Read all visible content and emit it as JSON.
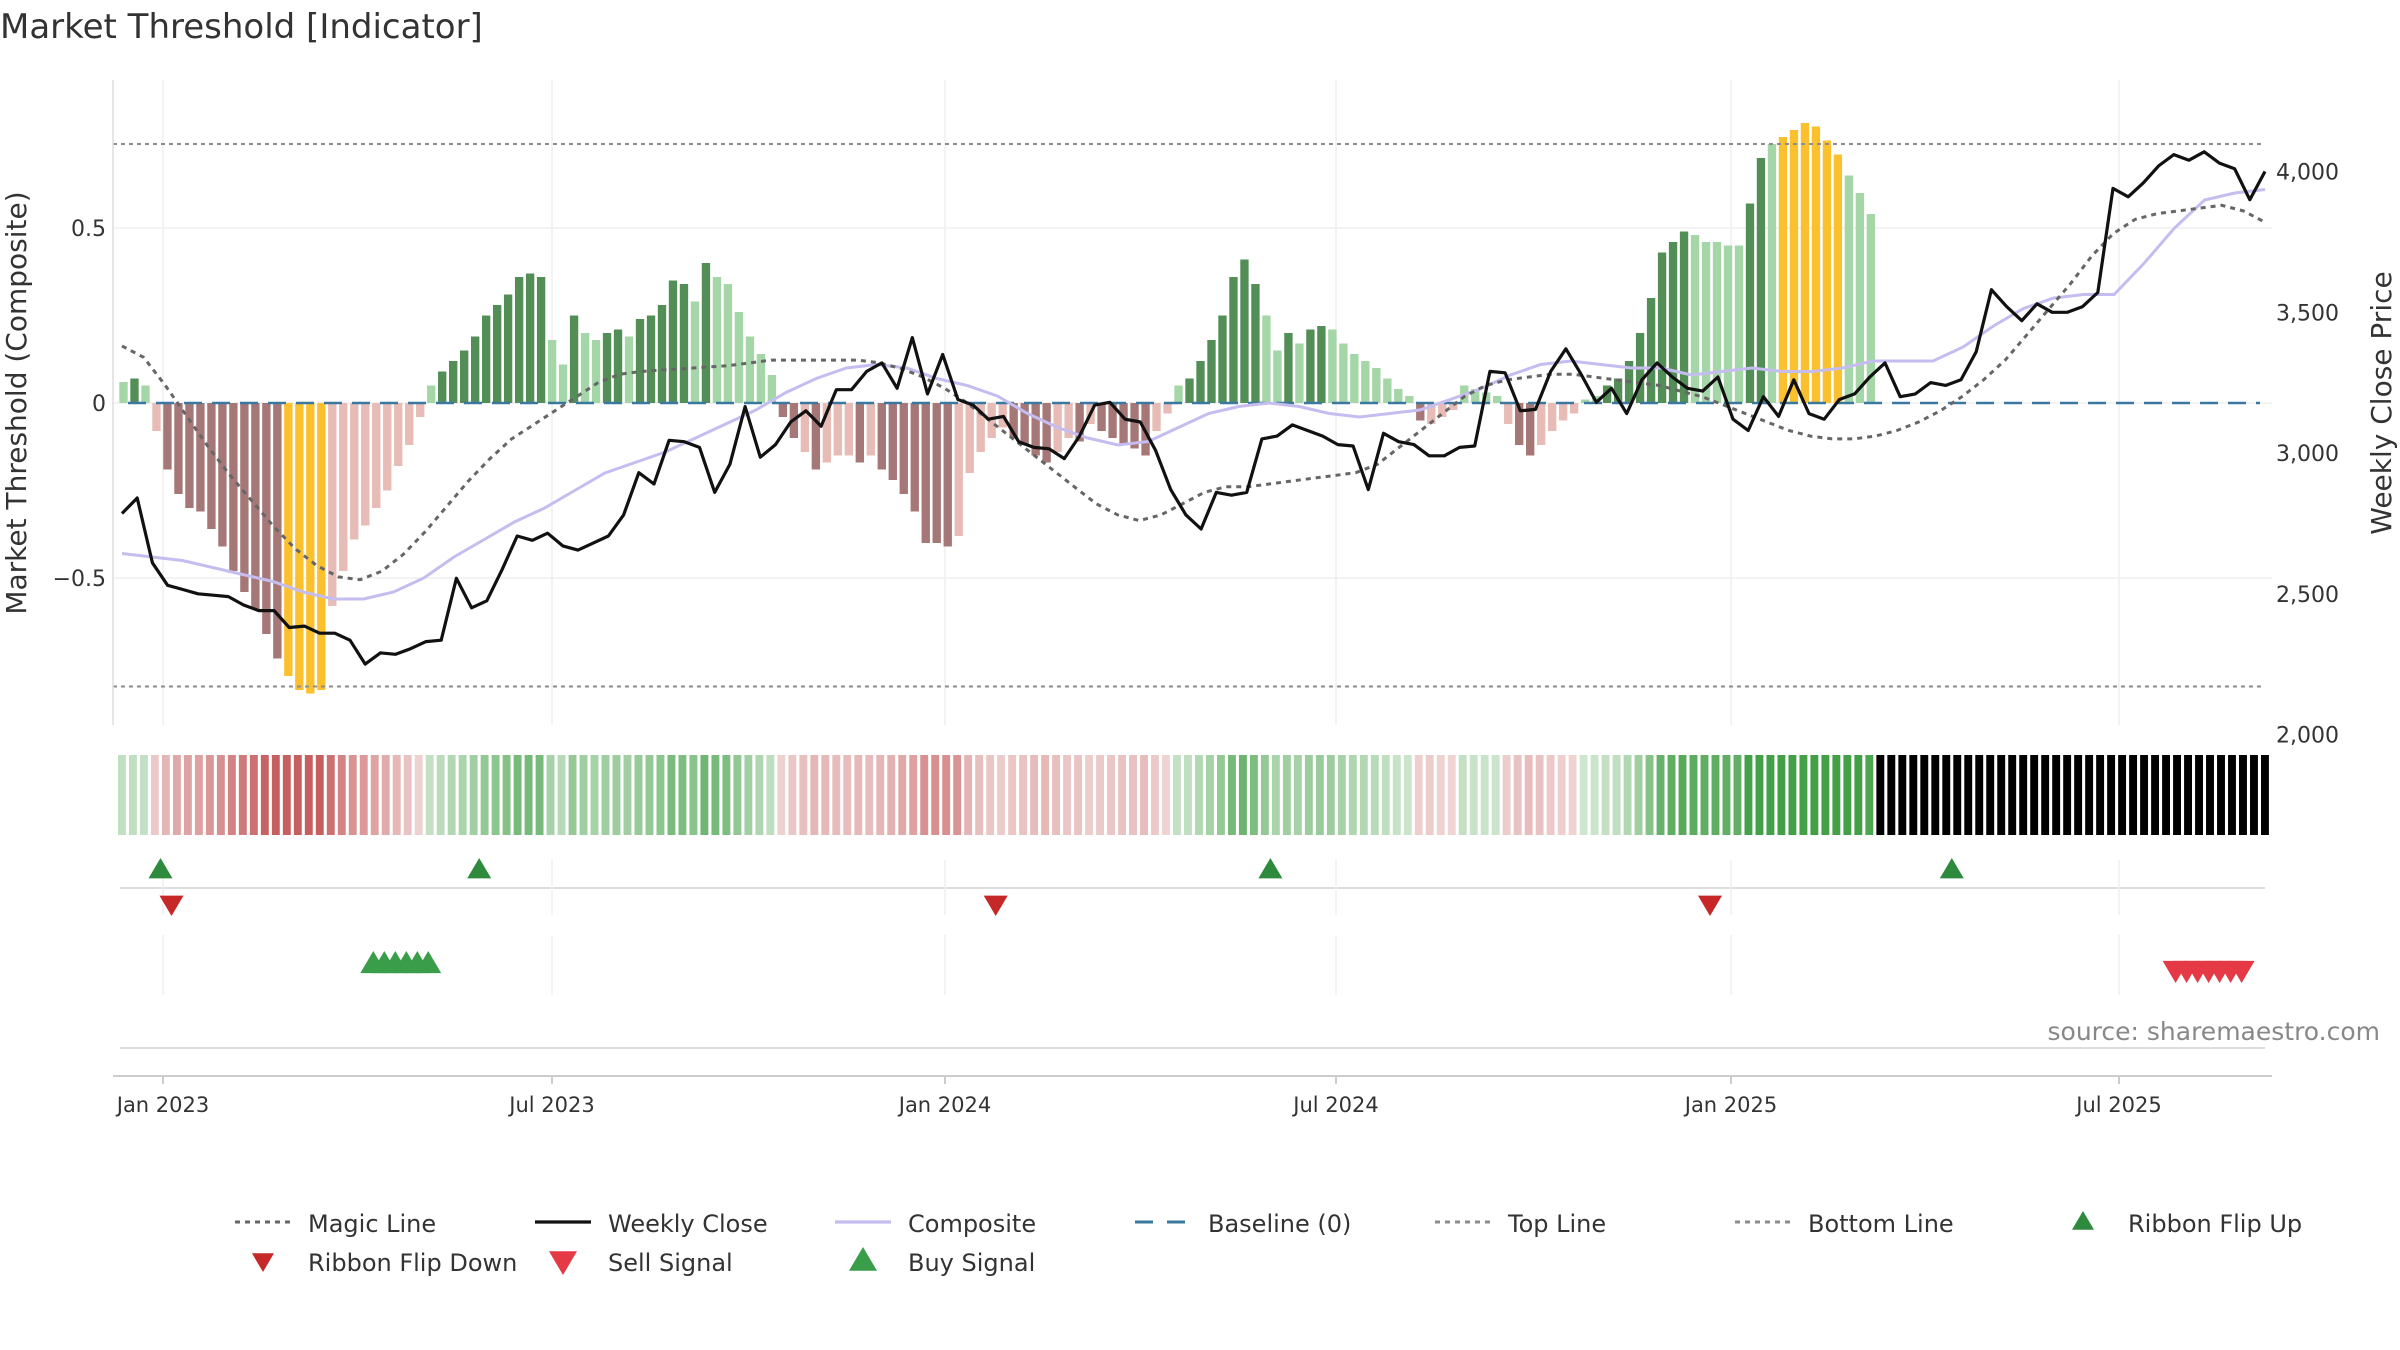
{
  "title": "Market Threshold [Indicator]",
  "source": "source: sharemaestro.com",
  "chart_data": {
    "type": "bar",
    "title": "Market Threshold [Indicator]",
    "ylabel_left": "Market Threshold (Composite)",
    "ylabel_right": "Weekly Close Price",
    "left_ylim": [
      -0.92,
      0.92
    ],
    "right_ylim": [
      1950,
      4150
    ],
    "left_ticks": [
      {
        "value": 0.5,
        "label": "0.5"
      },
      {
        "value": 0,
        "label": "0"
      },
      {
        "value": -0.5,
        "label": "−0.5"
      }
    ],
    "right_ticks": [
      {
        "value": 4000,
        "label": "4,000"
      },
      {
        "value": 3500,
        "label": "3,500"
      },
      {
        "value": 3000,
        "label": "3,000"
      },
      {
        "value": 2500,
        "label": "2,500"
      },
      {
        "value": 2000,
        "label": "2,000"
      }
    ],
    "x_ticks": [
      "Jan 2023",
      "Jul 2023",
      "Jan 2024",
      "Jul 2024",
      "Jan 2025",
      "Jul 2025"
    ],
    "top_line": 0.74,
    "bottom_line": -0.81,
    "baseline": 0,
    "weeks": 196,
    "composite_bars": [
      0.06,
      0.07,
      0.05,
      -0.08,
      -0.19,
      -0.26,
      -0.3,
      -0.31,
      -0.36,
      -0.41,
      -0.48,
      -0.54,
      -0.59,
      -0.66,
      -0.73,
      -0.78,
      -0.82,
      -0.83,
      -0.82,
      -0.58,
      -0.48,
      -0.39,
      -0.35,
      -0.3,
      -0.25,
      -0.18,
      -0.12,
      -0.04,
      0.05,
      0.09,
      0.12,
      0.15,
      0.19,
      0.25,
      0.28,
      0.31,
      0.36,
      0.37,
      0.36,
      0.18,
      0.11,
      0.25,
      0.2,
      0.18,
      0.2,
      0.21,
      0.19,
      0.24,
      0.25,
      0.28,
      0.35,
      0.34,
      0.29,
      0.4,
      0.36,
      0.34,
      0.26,
      0.19,
      0.14,
      0.08,
      -0.04,
      -0.1,
      -0.14,
      -0.19,
      -0.17,
      -0.15,
      -0.15,
      -0.17,
      -0.15,
      -0.19,
      -0.22,
      -0.26,
      -0.31,
      -0.4,
      -0.4,
      -0.41,
      -0.38,
      -0.2,
      -0.14,
      -0.1,
      -0.07,
      -0.1,
      -0.12,
      -0.15,
      -0.17,
      -0.14,
      -0.1,
      -0.11,
      -0.06,
      -0.08,
      -0.1,
      -0.12,
      -0.13,
      -0.15,
      -0.08,
      -0.03,
      0.05,
      0.07,
      0.12,
      0.18,
      0.25,
      0.36,
      0.41,
      0.34,
      0.25,
      0.15,
      0.2,
      0.17,
      0.21,
      0.22,
      0.21,
      0.17,
      0.14,
      0.12,
      0.1,
      0.07,
      0.04,
      0.02,
      -0.05,
      -0.06,
      -0.04,
      -0.02,
      0.05,
      0.04,
      0.03,
      0.02,
      -0.06,
      -0.12,
      -0.15,
      -0.12,
      -0.08,
      -0.05,
      -0.03,
      0.01,
      0.02,
      0.05,
      0.07,
      0.12,
      0.2,
      0.3,
      0.43,
      0.46,
      0.49,
      0.48,
      0.46,
      0.46,
      0.45,
      0.45,
      0.57,
      0.7,
      0.74,
      0.76,
      0.78,
      0.8,
      0.79,
      0.75,
      0.71,
      0.65,
      0.6,
      0.54
    ],
    "composite_bar_colors": [
      "#a5d6a7",
      "#548e57",
      "#a5d6a7",
      "#e8bcb6",
      "#a67777",
      "#a67777",
      "#a67777",
      "#a67777",
      "#a67777",
      "#a67777",
      "#a67777",
      "#a67777",
      "#a67777",
      "#a67777",
      "#a67777",
      "#fbc02d",
      "#fbc02d",
      "#fbc02d",
      "#fbc02d",
      "#e8bcb6",
      "#e8bcb6",
      "#e8bcb6",
      "#e8bcb6",
      "#e8bcb6",
      "#e8bcb6",
      "#e8bcb6",
      "#e8bcb6",
      "#e8bcb6",
      "#a5d6a7",
      "#548e57",
      "#548e57",
      "#548e57",
      "#548e57",
      "#548e57",
      "#548e57",
      "#548e57",
      "#548e57",
      "#548e57",
      "#548e57",
      "#a5d6a7",
      "#a5d6a7",
      "#548e57",
      "#a5d6a7",
      "#a5d6a7",
      "#548e57",
      "#548e57",
      "#a5d6a7",
      "#548e57",
      "#548e57",
      "#548e57",
      "#548e57",
      "#548e57",
      "#a5d6a7",
      "#548e57",
      "#a5d6a7",
      "#a5d6a7",
      "#a5d6a7",
      "#a5d6a7",
      "#a5d6a7",
      "#a5d6a7",
      "#a67777",
      "#a67777",
      "#e8bcb6",
      "#a67777",
      "#e8bcb6",
      "#e8bcb6",
      "#e8bcb6",
      "#a67777",
      "#e8bcb6",
      "#a67777",
      "#a67777",
      "#a67777",
      "#a67777",
      "#a67777",
      "#a67777",
      "#a67777",
      "#e8bcb6",
      "#e8bcb6",
      "#e8bcb6",
      "#e8bcb6",
      "#e8bcb6",
      "#a67777",
      "#a67777",
      "#a67777",
      "#a67777",
      "#e8bcb6",
      "#e8bcb6",
      "#a67777",
      "#e8bcb6",
      "#a67777",
      "#a67777",
      "#a67777",
      "#a67777",
      "#a67777",
      "#e8bcb6",
      "#e8bcb6",
      "#a5d6a7",
      "#548e57",
      "#548e57",
      "#548e57",
      "#548e57",
      "#548e57",
      "#548e57",
      "#548e57",
      "#a5d6a7",
      "#a5d6a7",
      "#548e57",
      "#a5d6a7",
      "#548e57",
      "#548e57",
      "#a5d6a7",
      "#a5d6a7",
      "#a5d6a7",
      "#a5d6a7",
      "#a5d6a7",
      "#a5d6a7",
      "#a5d6a7",
      "#a5d6a7",
      "#a67777",
      "#e8bcb6",
      "#e8bcb6",
      "#e8bcb6",
      "#a5d6a7",
      "#a5d6a7",
      "#a5d6a7",
      "#a5d6a7",
      "#e8bcb6",
      "#a67777",
      "#a67777",
      "#e8bcb6",
      "#e8bcb6",
      "#e8bcb6",
      "#e8bcb6",
      "#a5d6a7",
      "#a5d6a7",
      "#548e57",
      "#548e57",
      "#548e57",
      "#548e57",
      "#548e57",
      "#548e57",
      "#548e57",
      "#548e57",
      "#a5d6a7",
      "#a5d6a7",
      "#a5d6a7",
      "#a5d6a7",
      "#a5d6a7",
      "#548e57",
      "#548e57",
      "#a5d6a7",
      "#fbc02d",
      "#fbc02d",
      "#fbc02d",
      "#fbc02d",
      "#fbc02d",
      "#fbc02d",
      "#a5d6a7",
      "#a5d6a7",
      "#a5d6a7"
    ],
    "weekly_close": [
      2785,
      2840,
      2610,
      2530,
      2515,
      2500,
      2495,
      2490,
      2460,
      2440,
      2440,
      2380,
      2385,
      2360,
      2360,
      2335,
      2250,
      2290,
      2285,
      2305,
      2330,
      2335,
      2555,
      2450,
      2475,
      2585,
      2705,
      2690,
      2715,
      2670,
      2655,
      2680,
      2705,
      2780,
      2930,
      2890,
      3045,
      3040,
      3020,
      2860,
      2960,
      3165,
      2985,
      3030,
      3110,
      3150,
      3095,
      3225,
      3225,
      3290,
      3320,
      3230,
      3410,
      3210,
      3350,
      3190,
      3170,
      3120,
      3130,
      3040,
      3020,
      3015,
      2980,
      3060,
      3170,
      3180,
      3120,
      3110,
      3010,
      2870,
      2780,
      2730,
      2860,
      2850,
      2860,
      3050,
      3060,
      3100,
      3080,
      3060,
      3030,
      3025,
      2870,
      3070,
      3040,
      3030,
      2990,
      2990,
      3020,
      3025,
      3290,
      3285,
      3150,
      3155,
      3290,
      3370,
      3280,
      3180,
      3230,
      3140,
      3260,
      3320,
      3270,
      3230,
      3220,
      3270,
      3120,
      3080,
      3200,
      3130,
      3260,
      3140,
      3120,
      3190,
      3210,
      3270,
      3320,
      3200,
      3210,
      3250,
      3240,
      3260,
      3360,
      3580,
      3520,
      3470,
      3530,
      3500,
      3500,
      3520,
      3570,
      3940,
      3910,
      3960,
      4020,
      4060,
      4040,
      4070,
      4030,
      4010,
      3900,
      4000
    ],
    "magic_line": [
      3380,
      3340,
      3240,
      3130,
      3020,
      2920,
      2830,
      2740,
      2660,
      2600,
      2560,
      2550,
      2580,
      2640,
      2720,
      2810,
      2900,
      2980,
      3050,
      3100,
      3150,
      3200,
      3250,
      3280,
      3290,
      3295,
      3300,
      3305,
      3310,
      3320,
      3330,
      3330,
      3330,
      3330,
      3330,
      3320,
      3300,
      3270,
      3230,
      3180,
      3120,
      3060,
      3000,
      2940,
      2880,
      2820,
      2780,
      2760,
      2780,
      2820,
      2860,
      2880,
      2880,
      2890,
      2900,
      2910,
      2920,
      2930,
      2960,
      3020,
      3080,
      3140,
      3200,
      3240,
      3260,
      3270,
      3280,
      3280,
      3270,
      3260,
      3250,
      3240,
      3220,
      3200,
      3170,
      3140,
      3110,
      3080,
      3060,
      3050,
      3050,
      3060,
      3080,
      3110,
      3150,
      3200,
      3260,
      3330,
      3420,
      3510,
      3600,
      3700,
      3780,
      3830,
      3850,
      3860,
      3870,
      3880,
      3860,
      3820
    ],
    "composite_line": [
      -0.43,
      -0.44,
      -0.45,
      -0.47,
      -0.49,
      -0.51,
      -0.54,
      -0.56,
      -0.56,
      -0.54,
      -0.5,
      -0.44,
      -0.39,
      -0.34,
      -0.3,
      -0.25,
      -0.2,
      -0.17,
      -0.14,
      -0.1,
      -0.06,
      -0.02,
      0.03,
      0.07,
      0.1,
      0.11,
      0.1,
      0.07,
      0.05,
      0.02,
      -0.03,
      -0.07,
      -0.1,
      -0.12,
      -0.11,
      -0.07,
      -0.03,
      -0.01,
      0.0,
      -0.01,
      -0.03,
      -0.04,
      -0.03,
      -0.02,
      0.01,
      0.04,
      0.08,
      0.11,
      0.12,
      0.11,
      0.1,
      0.1,
      0.08,
      0.09,
      0.1,
      0.09,
      0.09,
      0.1,
      0.12,
      0.12,
      0.12,
      0.16,
      0.22,
      0.27,
      0.3,
      0.31,
      0.31,
      0.4,
      0.5,
      0.58,
      0.6,
      0.61
    ]
  },
  "legend": [
    {
      "label": "Magic Line",
      "marker": "dotted-line",
      "color": "#666666"
    },
    {
      "label": "Weekly Close",
      "marker": "solid-line",
      "color": "#111111"
    },
    {
      "label": "Composite",
      "marker": "solid-line",
      "color": "#c5bdf0"
    },
    {
      "label": "Baseline (0)",
      "marker": "dashed-line",
      "color": "#3a78a0"
    },
    {
      "label": "Top Line",
      "marker": "dotted-line",
      "color": "#8c8c8c"
    },
    {
      "label": "Bottom Line",
      "marker": "dotted-line",
      "color": "#8c8c8c"
    },
    {
      "label": "Ribbon Flip Up",
      "marker": "triangle-up",
      "color": "#2e8b3d"
    },
    {
      "label": "Ribbon Flip Down",
      "marker": "triangle-down",
      "color": "#c62828"
    },
    {
      "label": "Sell Signal",
      "marker": "triangle-down",
      "color": "#e53945"
    },
    {
      "label": "Buy Signal",
      "marker": "triangle-up",
      "color": "#3a9d4a"
    }
  ],
  "ribbon_flip_up_weeks": [
    2,
    31,
    103,
    165
  ],
  "ribbon_flip_down_weeks": [
    3,
    78,
    143
  ],
  "buy_signal_weeks": [
    20,
    21,
    22,
    23,
    24,
    25
  ],
  "sell_signal_weeks": [
    184,
    185,
    186,
    187,
    188,
    189,
    190
  ]
}
